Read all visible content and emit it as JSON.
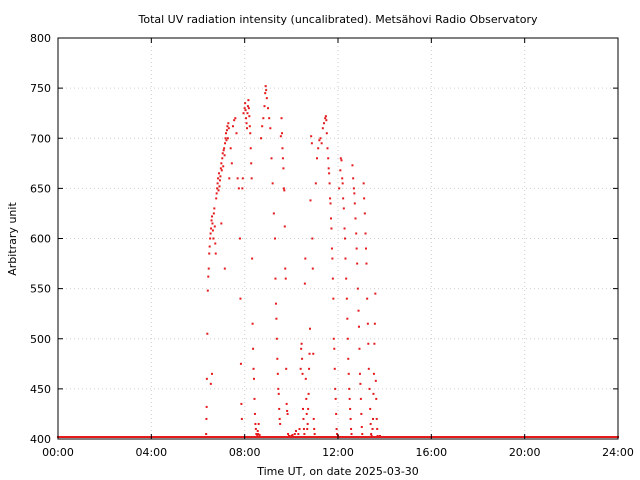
{
  "chart_data": {
    "type": "scatter",
    "title": "Total UV radiation intensity (uncalibrated). Metsähovi Radio Observatory",
    "xlabel": "Time UT, on date 2025-03-30",
    "ylabel": "Arbitrary unit",
    "xlim": [
      0,
      24
    ],
    "ylim": [
      400,
      800
    ],
    "x_ticks": [
      {
        "value": 0,
        "label": "00:00"
      },
      {
        "value": 4,
        "label": "04:00"
      },
      {
        "value": 8,
        "label": "08:00"
      },
      {
        "value": 12,
        "label": "12:00"
      },
      {
        "value": 16,
        "label": "16:00"
      },
      {
        "value": 20,
        "label": "20:00"
      },
      {
        "value": 24,
        "label": "24:00"
      }
    ],
    "y_ticks": [
      400,
      450,
      500,
      550,
      600,
      650,
      700,
      750,
      800
    ],
    "grid": true,
    "legend": "none",
    "point_color": "#e41a1c",
    "baseline": {
      "value": 402,
      "x_start": 0,
      "x_end": 24,
      "step": 0.05
    },
    "points": [
      [
        6.35,
        405
      ],
      [
        6.36,
        420
      ],
      [
        6.37,
        432
      ],
      [
        6.38,
        460
      ],
      [
        6.4,
        505
      ],
      [
        6.42,
        548
      ],
      [
        6.44,
        562
      ],
      [
        6.46,
        570
      ],
      [
        6.48,
        585
      ],
      [
        6.5,
        592
      ],
      [
        6.52,
        600
      ],
      [
        6.54,
        605
      ],
      [
        6.56,
        610
      ],
      [
        6.58,
        618
      ],
      [
        6.6,
        622
      ],
      [
        6.62,
        615
      ],
      [
        6.64,
        608
      ],
      [
        6.66,
        600
      ],
      [
        6.68,
        625
      ],
      [
        6.7,
        630
      ],
      [
        6.72,
        612
      ],
      [
        6.74,
        595
      ],
      [
        6.76,
        585
      ],
      [
        6.78,
        640
      ],
      [
        6.8,
        645
      ],
      [
        6.82,
        650
      ],
      [
        6.84,
        655
      ],
      [
        6.86,
        660
      ],
      [
        6.88,
        648
      ],
      [
        6.9,
        665
      ],
      [
        6.92,
        652
      ],
      [
        6.94,
        658
      ],
      [
        6.96,
        662
      ],
      [
        6.98,
        670
      ],
      [
        7.0,
        675
      ],
      [
        7.02,
        668
      ],
      [
        7.04,
        680
      ],
      [
        7.06,
        685
      ],
      [
        7.08,
        672
      ],
      [
        7.1,
        688
      ],
      [
        7.12,
        690
      ],
      [
        7.14,
        683
      ],
      [
        7.16,
        695
      ],
      [
        7.18,
        700
      ],
      [
        7.2,
        705
      ],
      [
        7.22,
        698
      ],
      [
        7.24,
        708
      ],
      [
        7.26,
        712
      ],
      [
        7.28,
        700
      ],
      [
        7.3,
        715
      ],
      [
        7.32,
        710
      ],
      [
        7.34,
        660
      ],
      [
        7.0,
        615
      ],
      [
        7.15,
        570
      ],
      [
        6.55,
        455
      ],
      [
        6.6,
        465
      ],
      [
        7.4,
        690
      ],
      [
        7.45,
        675
      ],
      [
        7.5,
        712
      ],
      [
        7.55,
        718
      ],
      [
        7.6,
        720
      ],
      [
        7.65,
        705
      ],
      [
        7.7,
        660
      ],
      [
        7.75,
        650
      ],
      [
        7.8,
        600
      ],
      [
        7.82,
        540
      ],
      [
        7.84,
        475
      ],
      [
        7.86,
        435
      ],
      [
        7.88,
        420
      ],
      [
        7.9,
        650
      ],
      [
        7.92,
        660
      ],
      [
        7.95,
        725
      ],
      [
        8.0,
        730
      ],
      [
        8.02,
        735
      ],
      [
        8.04,
        728
      ],
      [
        8.06,
        720
      ],
      [
        8.08,
        715
      ],
      [
        8.1,
        710
      ],
      [
        8.12,
        725
      ],
      [
        8.14,
        732
      ],
      [
        8.16,
        738
      ],
      [
        8.18,
        730
      ],
      [
        8.2,
        722
      ],
      [
        8.22,
        712
      ],
      [
        8.24,
        705
      ],
      [
        8.26,
        690
      ],
      [
        8.28,
        675
      ],
      [
        8.3,
        660
      ],
      [
        8.32,
        580
      ],
      [
        8.34,
        515
      ],
      [
        8.36,
        490
      ],
      [
        8.38,
        470
      ],
      [
        8.4,
        460
      ],
      [
        8.42,
        440
      ],
      [
        8.44,
        425
      ],
      [
        8.46,
        415
      ],
      [
        8.48,
        410
      ],
      [
        8.5,
        405
      ],
      [
        8.52,
        402
      ],
      [
        8.54,
        403
      ],
      [
        8.56,
        408
      ],
      [
        8.58,
        405
      ],
      [
        8.6,
        415
      ],
      [
        8.62,
        402
      ],
      [
        8.64,
        404
      ],
      [
        8.7,
        700
      ],
      [
        8.75,
        712
      ],
      [
        8.8,
        720
      ],
      [
        8.85,
        732
      ],
      [
        8.88,
        745
      ],
      [
        8.9,
        752
      ],
      [
        8.92,
        748
      ],
      [
        8.95,
        740
      ],
      [
        9.0,
        730
      ],
      [
        9.05,
        720
      ],
      [
        9.1,
        710
      ],
      [
        9.15,
        680
      ],
      [
        9.2,
        655
      ],
      [
        9.25,
        625
      ],
      [
        9.3,
        600
      ],
      [
        9.32,
        560
      ],
      [
        9.34,
        535
      ],
      [
        9.36,
        520
      ],
      [
        9.38,
        500
      ],
      [
        9.4,
        480
      ],
      [
        9.42,
        465
      ],
      [
        9.44,
        450
      ],
      [
        9.46,
        445
      ],
      [
        9.48,
        430
      ],
      [
        9.5,
        420
      ],
      [
        9.52,
        415
      ],
      [
        9.55,
        702
      ],
      [
        9.58,
        720
      ],
      [
        9.6,
        705
      ],
      [
        9.62,
        690
      ],
      [
        9.64,
        680
      ],
      [
        9.66,
        670
      ],
      [
        9.68,
        650
      ],
      [
        9.7,
        648
      ],
      [
        9.72,
        612
      ],
      [
        9.74,
        570
      ],
      [
        9.76,
        560
      ],
      [
        9.78,
        470
      ],
      [
        9.8,
        435
      ],
      [
        9.82,
        428
      ],
      [
        9.84,
        425
      ],
      [
        9.86,
        405
      ],
      [
        9.88,
        402
      ],
      [
        9.9,
        403
      ],
      [
        9.95,
        402
      ],
      [
        10.0,
        403
      ],
      [
        10.05,
        404
      ],
      [
        10.1,
        402
      ],
      [
        10.15,
        405
      ],
      [
        10.2,
        408
      ],
      [
        10.25,
        402
      ],
      [
        10.3,
        405
      ],
      [
        10.35,
        410
      ],
      [
        10.4,
        470
      ],
      [
        10.42,
        490
      ],
      [
        10.44,
        495
      ],
      [
        10.46,
        480
      ],
      [
        10.48,
        465
      ],
      [
        10.5,
        430
      ],
      [
        10.52,
        420
      ],
      [
        10.54,
        410
      ],
      [
        10.56,
        405
      ],
      [
        10.58,
        555
      ],
      [
        10.6,
        580
      ],
      [
        10.62,
        460
      ],
      [
        10.64,
        440
      ],
      [
        10.66,
        425
      ],
      [
        10.68,
        410
      ],
      [
        10.7,
        415
      ],
      [
        10.72,
        430
      ],
      [
        10.74,
        445
      ],
      [
        10.76,
        470
      ],
      [
        10.78,
        485
      ],
      [
        10.8,
        510
      ],
      [
        10.82,
        638
      ],
      [
        10.85,
        702
      ],
      [
        10.88,
        695
      ],
      [
        10.9,
        600
      ],
      [
        10.92,
        570
      ],
      [
        10.94,
        485
      ],
      [
        10.96,
        420
      ],
      [
        10.98,
        410
      ],
      [
        11.0,
        405
      ],
      [
        11.02,
        402
      ],
      [
        11.05,
        655
      ],
      [
        11.1,
        680
      ],
      [
        11.15,
        690
      ],
      [
        11.2,
        698
      ],
      [
        11.25,
        700
      ],
      [
        11.3,
        695
      ],
      [
        11.35,
        710
      ],
      [
        11.4,
        715
      ],
      [
        11.45,
        720
      ],
      [
        11.48,
        722
      ],
      [
        11.5,
        718
      ],
      [
        11.52,
        705
      ],
      [
        11.55,
        690
      ],
      [
        11.58,
        680
      ],
      [
        11.6,
        670
      ],
      [
        11.62,
        665
      ],
      [
        11.64,
        655
      ],
      [
        11.66,
        640
      ],
      [
        11.68,
        635
      ],
      [
        11.7,
        620
      ],
      [
        11.72,
        610
      ],
      [
        11.74,
        590
      ],
      [
        11.76,
        580
      ],
      [
        11.78,
        560
      ],
      [
        11.8,
        540
      ],
      [
        11.82,
        500
      ],
      [
        11.84,
        490
      ],
      [
        11.86,
        470
      ],
      [
        11.88,
        450
      ],
      [
        11.9,
        440
      ],
      [
        11.92,
        425
      ],
      [
        11.94,
        410
      ],
      [
        11.96,
        405
      ],
      [
        11.98,
        402
      ],
      [
        12.0,
        403
      ],
      [
        12.05,
        650
      ],
      [
        12.1,
        668
      ],
      [
        12.12,
        680
      ],
      [
        12.15,
        678
      ],
      [
        12.18,
        660
      ],
      [
        12.2,
        655
      ],
      [
        12.22,
        640
      ],
      [
        12.25,
        630
      ],
      [
        12.28,
        610
      ],
      [
        12.3,
        600
      ],
      [
        12.32,
        580
      ],
      [
        12.35,
        560
      ],
      [
        12.38,
        540
      ],
      [
        12.4,
        520
      ],
      [
        12.42,
        500
      ],
      [
        12.44,
        480
      ],
      [
        12.46,
        465
      ],
      [
        12.48,
        450
      ],
      [
        12.5,
        440
      ],
      [
        12.52,
        430
      ],
      [
        12.54,
        420
      ],
      [
        12.56,
        410
      ],
      [
        12.58,
        405
      ],
      [
        12.6,
        402
      ],
      [
        12.62,
        673
      ],
      [
        12.65,
        660
      ],
      [
        12.68,
        650
      ],
      [
        12.7,
        645
      ],
      [
        12.72,
        635
      ],
      [
        12.75,
        620
      ],
      [
        12.78,
        605
      ],
      [
        12.8,
        590
      ],
      [
        12.82,
        575
      ],
      [
        12.85,
        550
      ],
      [
        12.88,
        528
      ],
      [
        12.9,
        512
      ],
      [
        12.92,
        490
      ],
      [
        12.94,
        465
      ],
      [
        12.96,
        455
      ],
      [
        12.98,
        440
      ],
      [
        13.0,
        425
      ],
      [
        13.02,
        412
      ],
      [
        13.04,
        405
      ],
      [
        13.06,
        402
      ],
      [
        13.1,
        655
      ],
      [
        13.12,
        640
      ],
      [
        13.15,
        625
      ],
      [
        13.18,
        605
      ],
      [
        13.2,
        590
      ],
      [
        13.22,
        575
      ],
      [
        13.25,
        540
      ],
      [
        13.28,
        515
      ],
      [
        13.3,
        495
      ],
      [
        13.32,
        470
      ],
      [
        13.35,
        450
      ],
      [
        13.38,
        430
      ],
      [
        13.4,
        415
      ],
      [
        13.42,
        405
      ],
      [
        13.44,
        403
      ],
      [
        13.46,
        402
      ],
      [
        13.48,
        410
      ],
      [
        13.5,
        420
      ],
      [
        13.52,
        445
      ],
      [
        13.54,
        465
      ],
      [
        13.56,
        495
      ],
      [
        13.58,
        515
      ],
      [
        13.6,
        545
      ],
      [
        13.62,
        458
      ],
      [
        13.64,
        440
      ],
      [
        13.66,
        420
      ],
      [
        13.68,
        410
      ],
      [
        13.7,
        403
      ],
      [
        13.75,
        402
      ],
      [
        13.8,
        403
      ],
      [
        13.85,
        402
      ]
    ]
  }
}
